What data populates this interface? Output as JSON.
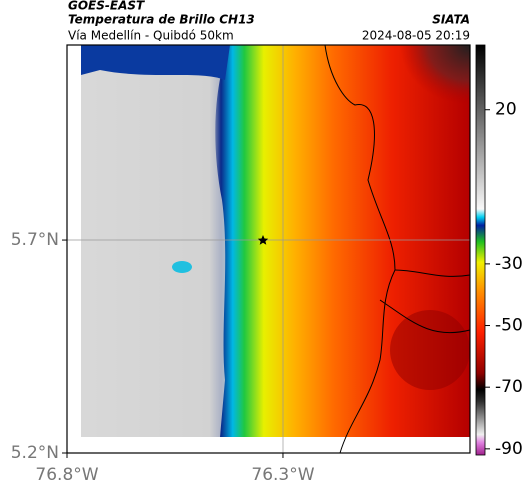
{
  "header": {
    "satellite": "GOES-EAST",
    "title": "Temperatura de Brillo CH13",
    "subtitle": "Vía Medellín - Quibdó 50km",
    "source": "SIATA",
    "datetime": "2024-08-05 20:19"
  },
  "map": {
    "xlim": [
      -76.8,
      -75.867
    ],
    "ylim": [
      5.2,
      6.158
    ],
    "xticks": [
      {
        "value": -76.8,
        "label": "76.8°W"
      },
      {
        "value": -76.3,
        "label": "76.3°W"
      }
    ],
    "yticks": [
      {
        "value": 5.7,
        "label": "5.7°N"
      },
      {
        "value": 5.2,
        "label": "5.2°N"
      }
    ],
    "colorbar": {
      "lim": [
        -92,
        41
      ],
      "ticks": [
        20,
        -30,
        -50,
        -70,
        -90
      ]
    }
  }
}
